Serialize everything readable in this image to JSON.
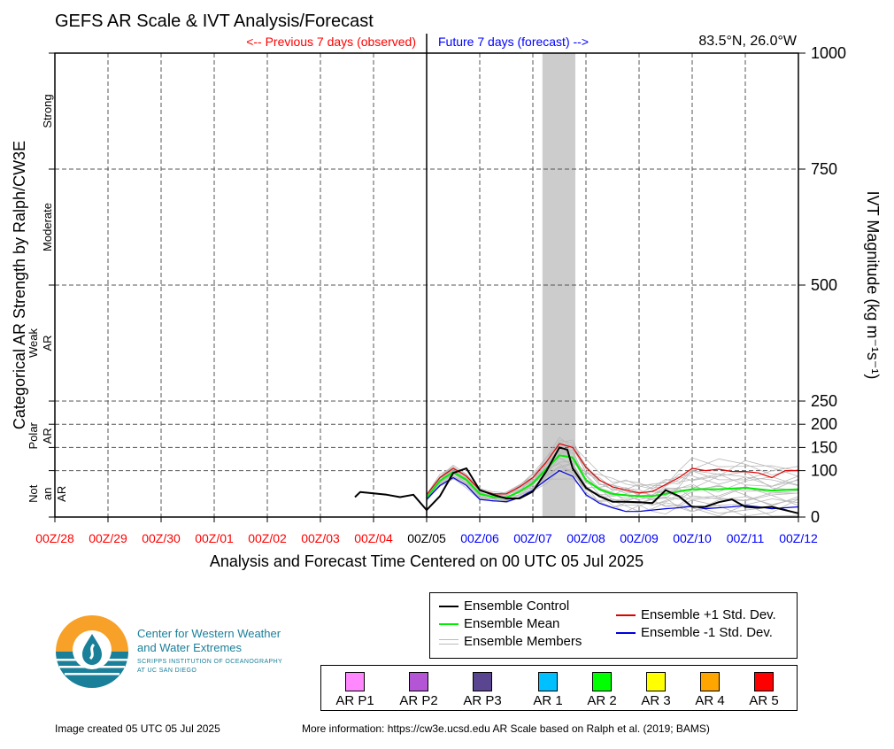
{
  "header": {
    "title": "GEFS AR Scale & IVT Analysis/Forecast",
    "previous_label": "<-- Previous 7 days (observed)",
    "future_label": "Future 7 days (forecast) -->",
    "location": "83.5°N, 26.0°W"
  },
  "colors": {
    "observed": "#ff0000",
    "forecast": "#0000ff",
    "control": "#000000",
    "mean": "#00ee00",
    "plus_sd": "#e00000",
    "minus_sd": "#0000e0",
    "members": "#b8b8b8",
    "shade": "#cccccc"
  },
  "chart_data": {
    "type": "line",
    "xlabel": "Analysis and Forecast Time Centered on 00 UTC 05 Jul 2025",
    "ylabel_right": "IVT Magnitude (kg m⁻¹s⁻¹)",
    "ylabel_left": "Categorical AR Strength by Ralph/CW3E",
    "ylim": [
      0,
      1000
    ],
    "xlim": [
      0,
      14
    ],
    "x_unit": "days after 00Z/28 Jun 2025",
    "x_ticks": [
      {
        "label": "00Z/28",
        "group": "observed"
      },
      {
        "label": "00Z/29",
        "group": "observed"
      },
      {
        "label": "00Z/30",
        "group": "observed"
      },
      {
        "label": "00Z/01",
        "group": "observed"
      },
      {
        "label": "00Z/02",
        "group": "observed"
      },
      {
        "label": "00Z/03",
        "group": "observed"
      },
      {
        "label": "00Z/04",
        "group": "observed"
      },
      {
        "label": "00Z/05",
        "group": "current"
      },
      {
        "label": "00Z/06",
        "group": "forecast"
      },
      {
        "label": "00Z/07",
        "group": "forecast"
      },
      {
        "label": "00Z/08",
        "group": "forecast"
      },
      {
        "label": "00Z/09",
        "group": "forecast"
      },
      {
        "label": "00Z/10",
        "group": "forecast"
      },
      {
        "label": "00Z/11",
        "group": "forecast"
      },
      {
        "label": "00Z/12",
        "group": "forecast"
      }
    ],
    "y_ticks": [
      0,
      100,
      150,
      200,
      250,
      500,
      750,
      1000
    ],
    "categories": [
      {
        "label": "Strong",
        "from": 750,
        "to": 1000
      },
      {
        "label": "Moderate",
        "from": 500,
        "to": 750
      },
      {
        "label": "Weak AR",
        "from": 250,
        "to": 500
      },
      {
        "label": "Polar AR",
        "from": 100,
        "to": 250
      },
      {
        "label": "Not an AR",
        "from": 0,
        "to": 100
      }
    ],
    "shaded_period": [
      9.18,
      9.8
    ],
    "series": [
      {
        "name": "Ensemble Control",
        "style": "control",
        "x": [
          5.65,
          5.75,
          6.25,
          6.5,
          6.75,
          7.0,
          7.25,
          7.5,
          7.75,
          8.0,
          8.25,
          8.5,
          8.75,
          9.0,
          9.25,
          9.5,
          9.65,
          9.75,
          10.0,
          10.25,
          10.5,
          10.75,
          11.0,
          11.25,
          11.5,
          11.75,
          12.0,
          12.25,
          12.5,
          12.75,
          13.0,
          13.25,
          13.5,
          13.75,
          14.0
        ],
        "y": [
          43,
          54,
          48,
          43,
          48,
          15,
          45,
          95,
          105,
          58,
          48,
          40,
          40,
          55,
          98,
          150,
          145,
          105,
          63,
          45,
          33,
          33,
          32,
          30,
          58,
          45,
          22,
          22,
          32,
          38,
          22,
          20,
          22,
          15,
          8
        ]
      },
      {
        "name": "Ensemble Mean",
        "style": "mean",
        "x": [
          7.0,
          7.25,
          7.5,
          7.75,
          8.0,
          8.25,
          8.5,
          8.75,
          9.0,
          9.25,
          9.5,
          9.75,
          10.0,
          10.25,
          10.5,
          10.75,
          11.0,
          11.25,
          11.5,
          11.75,
          12.0,
          12.5,
          13.0,
          13.5,
          14.0
        ],
        "y": [
          42,
          78,
          97,
          80,
          50,
          43,
          42,
          55,
          73,
          103,
          133,
          128,
          80,
          60,
          50,
          47,
          45,
          45,
          50,
          55,
          60,
          60,
          63,
          57,
          60
        ]
      },
      {
        "name": "Ensemble +1 Std. Dev.",
        "style": "plus",
        "x": [
          7.0,
          7.25,
          7.5,
          7.75,
          8.0,
          8.25,
          8.5,
          8.75,
          9.0,
          9.25,
          9.5,
          9.75,
          10.0,
          10.25,
          10.5,
          10.75,
          11.0,
          11.25,
          11.5,
          11.75,
          12.0,
          12.25,
          12.5,
          12.75,
          13.0,
          13.25,
          13.5,
          13.75,
          14.0
        ],
        "y": [
          48,
          85,
          105,
          88,
          58,
          50,
          50,
          65,
          85,
          118,
          158,
          150,
          107,
          80,
          65,
          58,
          52,
          55,
          70,
          85,
          105,
          100,
          103,
          98,
          98,
          95,
          85,
          100,
          100
        ]
      },
      {
        "name": "Ensemble -1 Std. Dev.",
        "style": "minus",
        "x": [
          7.0,
          7.25,
          7.5,
          7.75,
          8.0,
          8.25,
          8.5,
          8.75,
          9.0,
          9.25,
          9.5,
          9.75,
          10.0,
          10.25,
          10.5,
          10.75,
          11.0,
          11.25,
          11.5,
          11.75,
          12.0,
          12.25,
          12.5,
          12.75,
          13.0,
          13.25,
          13.5,
          13.75,
          14.0
        ],
        "y": [
          38,
          68,
          85,
          68,
          38,
          35,
          33,
          42,
          58,
          80,
          100,
          88,
          48,
          30,
          20,
          12,
          12,
          15,
          18,
          20,
          23,
          18,
          20,
          22,
          25,
          22,
          18,
          20,
          22
        ]
      }
    ]
  },
  "legend": {
    "items": [
      {
        "label": "Ensemble Control",
        "style": "control"
      },
      {
        "label": "Ensemble Mean",
        "style": "mean"
      },
      {
        "label": "Ensemble Members",
        "style": "members"
      },
      {
        "label": "Ensemble +1 Std. Dev.",
        "style": "plus"
      },
      {
        "label": "Ensemble -1 Std. Dev.",
        "style": "minus"
      }
    ]
  },
  "ar_scale": [
    {
      "label": "AR P1",
      "color": "#ff88ff"
    },
    {
      "label": "AR P2",
      "color": "#b455d6"
    },
    {
      "label": "AR P3",
      "color": "#5a4590"
    },
    {
      "label": "AR 1",
      "color": "#00c0ff"
    },
    {
      "label": "AR 2",
      "color": "#00ff00"
    },
    {
      "label": "AR 3",
      "color": "#ffff00"
    },
    {
      "label": "AR 4",
      "color": "#ffa500"
    },
    {
      "label": "AR 5",
      "color": "#ff0000"
    }
  ],
  "logo": {
    "line1": "Center for Western Weather",
    "line2": "and Water Extremes",
    "line3": "SCRIPPS INSTITUTION OF OCEANOGRAPHY",
    "line4": "AT UC SAN DIEGO"
  },
  "footer": {
    "created": "Image created 05 UTC 05 Jul 2025",
    "info": "More information: https://cw3e.ucsd.edu AR Scale based on Ralph et al. (2019; BAMS)"
  }
}
